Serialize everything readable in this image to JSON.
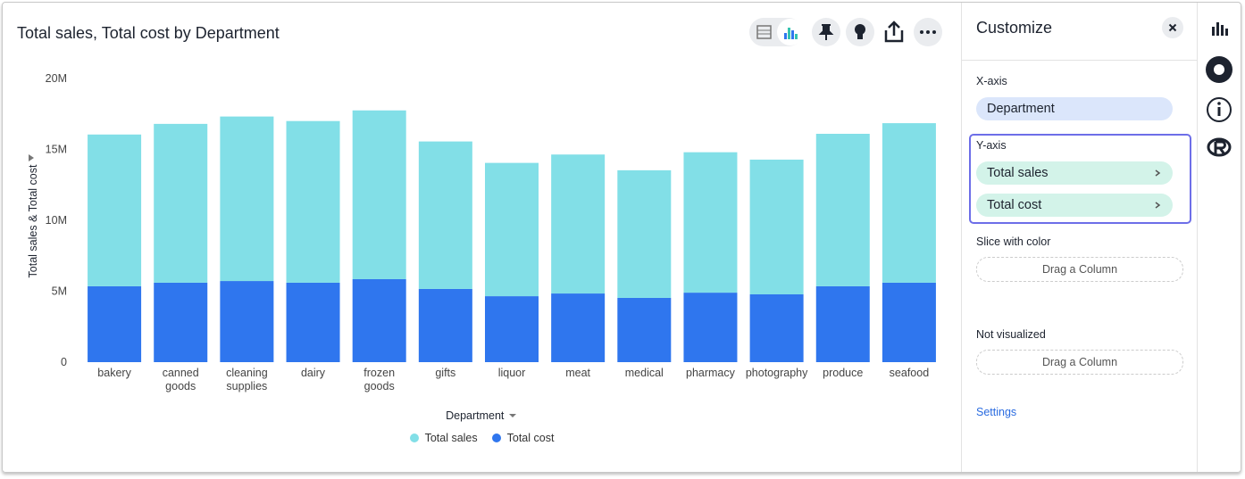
{
  "chart_data": {
    "type": "stacked_bar",
    "title": "Total sales, Total cost by Department",
    "x_label": "Department",
    "y_label": "Total sales & Total cost",
    "categories": [
      "bakery",
      "canned goods",
      "cleaning supplies",
      "dairy",
      "frozen goods",
      "gifts",
      "liquor",
      "meat",
      "medical",
      "pharmacy",
      "photography",
      "produce",
      "seafood"
    ],
    "series": [
      {
        "name": "Total cost",
        "color": "#2f76ee",
        "values": [
          5350000,
          5600000,
          5720000,
          5600000,
          5850000,
          5160000,
          4650000,
          4840000,
          4530000,
          4900000,
          4780000,
          5350000,
          5600000
        ]
      },
      {
        "name": "Total sales",
        "color": "#82dfe7",
        "values": [
          10700000,
          11200000,
          11600000,
          11400000,
          11900000,
          10400000,
          9400000,
          9800000,
          9000000,
          9900000,
          9500000,
          10750000,
          11250000
        ]
      }
    ],
    "legend_order": [
      "Total sales",
      "Total cost"
    ],
    "ylim": [
      0,
      20000000
    ],
    "yticks": [
      0,
      {
        "value": 5000000,
        "label": "5M"
      },
      {
        "value": 10000000,
        "label": "10M"
      },
      {
        "value": 15000000,
        "label": "15M"
      },
      {
        "value": 20000000,
        "label": "20M"
      }
    ],
    "grid": false
  },
  "customize": {
    "title": "Customize",
    "x_axis": {
      "label": "X-axis",
      "items": [
        "Department"
      ]
    },
    "y_axis": {
      "label": "Y-axis",
      "items": [
        "Total sales",
        "Total cost"
      ]
    },
    "slice": {
      "label": "Slice with color",
      "placeholder": "Drag a Column"
    },
    "not_visualized": {
      "label": "Not visualized",
      "placeholder": "Drag a Column"
    },
    "settings": "Settings"
  }
}
